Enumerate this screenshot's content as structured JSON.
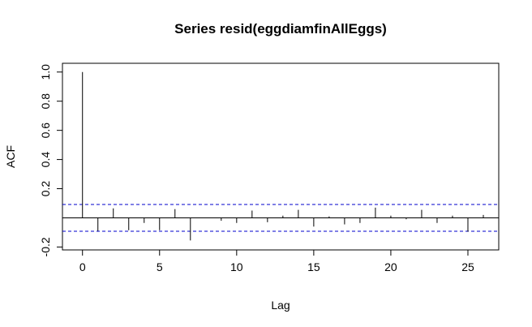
{
  "chart_data": {
    "type": "acf",
    "title": "Series  resid(eggdiamfinAllEggs)",
    "xlabel": "Lag",
    "ylabel": "ACF",
    "xlim": [
      -1.3,
      27.0
    ],
    "ylim": [
      -0.22,
      1.06
    ],
    "x_ticks": [
      0,
      5,
      10,
      15,
      20,
      25
    ],
    "y_ticks": [
      -0.2,
      0.2,
      0.4,
      0.6,
      0.8,
      1.0
    ],
    "y_tick_labels": [
      "-0.2",
      "0.2",
      "0.4",
      "0.6",
      "0.8",
      "1.0"
    ],
    "confidence_bound": 0.092,
    "confidence_color": "#0000cc",
    "lags": [
      0,
      1,
      2,
      3,
      4,
      5,
      6,
      7,
      8,
      9,
      10,
      11,
      12,
      13,
      14,
      15,
      16,
      17,
      18,
      19,
      20,
      21,
      22,
      23,
      24,
      25,
      26
    ],
    "acf": [
      1.0,
      -0.09,
      0.065,
      -0.085,
      -0.035,
      -0.085,
      0.06,
      -0.155,
      0.0,
      -0.02,
      -0.035,
      0.05,
      -0.03,
      0.015,
      0.055,
      -0.06,
      0.01,
      -0.045,
      -0.035,
      0.07,
      0.015,
      -0.01,
      0.055,
      -0.035,
      0.015,
      -0.095,
      0.02
    ]
  }
}
